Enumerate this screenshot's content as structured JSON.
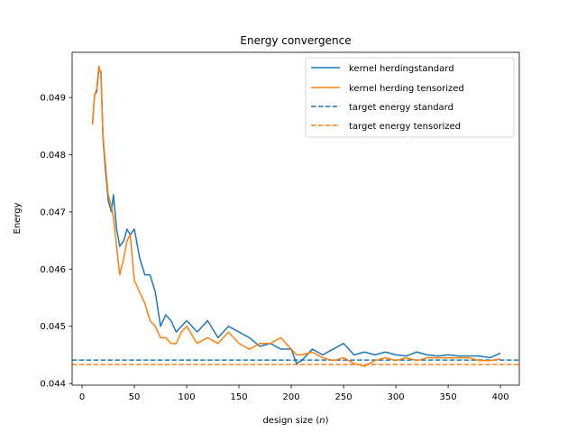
{
  "chart_data": {
    "type": "line",
    "title": "Energy convergence",
    "xlabel": "design size (",
    "xlabel_var": "n",
    "xlabel_suffix": ")",
    "ylabel": "Energy",
    "xlim": [
      -9.5,
      418
    ],
    "ylim": [
      0.04397,
      0.04979
    ],
    "xticks": [
      0,
      50,
      100,
      150,
      200,
      250,
      300,
      350,
      400
    ],
    "yticks": [
      0.044,
      0.045,
      0.046,
      0.047,
      0.048,
      0.049
    ],
    "grid": false,
    "legend_position": "top-right",
    "legend": [
      "kernel herdingstandard",
      "kernel herding tensorized",
      "target energy standard",
      "target energy tensorized"
    ],
    "colors": {
      "standard": "#1f77b4",
      "tensorized": "#ff7f0e"
    },
    "series": [
      {
        "name": "kernel herdingstandard",
        "style": "solid",
        "x": [
          10,
          12,
          14,
          16,
          18,
          20,
          22,
          25,
          28,
          30,
          33,
          36,
          40,
          43,
          46,
          50,
          55,
          60,
          65,
          70,
          75,
          80,
          85,
          90,
          95,
          100,
          110,
          120,
          130,
          140,
          150,
          160,
          170,
          180,
          190,
          200,
          205,
          210,
          220,
          230,
          240,
          250,
          260,
          270,
          280,
          290,
          300,
          310,
          320,
          330,
          340,
          350,
          360,
          370,
          380,
          390,
          400
        ],
        "values": [
          0.04853,
          0.04905,
          0.0491,
          0.0495,
          0.04945,
          0.0483,
          0.0478,
          0.0472,
          0.047,
          0.0473,
          0.0467,
          0.0464,
          0.0465,
          0.0467,
          0.0466,
          0.0467,
          0.0462,
          0.0459,
          0.0459,
          0.0456,
          0.045,
          0.0452,
          0.0451,
          0.0449,
          0.045,
          0.0451,
          0.0449,
          0.0451,
          0.0448,
          0.045,
          0.0449,
          0.0448,
          0.04465,
          0.0447,
          0.0446,
          0.0446,
          0.04435,
          0.0444,
          0.0446,
          0.0445,
          0.0446,
          0.0447,
          0.0445,
          0.04455,
          0.0445,
          0.04455,
          0.0445,
          0.04448,
          0.04455,
          0.0445,
          0.04448,
          0.0445,
          0.04448,
          0.04448,
          0.04448,
          0.04445,
          0.04453
        ]
      },
      {
        "name": "kernel herding tensorized",
        "style": "solid",
        "x": [
          10,
          12,
          14,
          16,
          18,
          20,
          22,
          25,
          28,
          30,
          33,
          36,
          40,
          43,
          46,
          50,
          55,
          60,
          65,
          70,
          75,
          80,
          85,
          90,
          95,
          100,
          110,
          120,
          130,
          140,
          150,
          160,
          170,
          180,
          190,
          200,
          205,
          210,
          220,
          230,
          240,
          250,
          260,
          270,
          280,
          290,
          300,
          310,
          320,
          330,
          340,
          350,
          360,
          370,
          380,
          390,
          400
        ],
        "values": [
          0.04853,
          0.04905,
          0.04915,
          0.04955,
          0.0494,
          0.04835,
          0.0479,
          0.0473,
          0.0471,
          0.0469,
          0.0464,
          0.0459,
          0.0462,
          0.0465,
          0.0466,
          0.0458,
          0.0456,
          0.0454,
          0.0451,
          0.045,
          0.0448,
          0.0448,
          0.0447,
          0.0447,
          0.0449,
          0.045,
          0.0447,
          0.0448,
          0.0447,
          0.0449,
          0.0447,
          0.0446,
          0.0447,
          0.0447,
          0.0448,
          0.0446,
          0.0445,
          0.0445,
          0.04455,
          0.04445,
          0.0444,
          0.04445,
          0.04435,
          0.0443,
          0.0444,
          0.04445,
          0.0444,
          0.04445,
          0.0444,
          0.04445,
          0.04445,
          0.04445,
          0.04445,
          0.04445,
          0.0444,
          0.0444,
          0.04443
        ]
      },
      {
        "name": "target energy standard",
        "style": "dashed",
        "y": 0.04441
      },
      {
        "name": "target energy tensorized",
        "style": "dashed",
        "y": 0.04433
      }
    ]
  }
}
